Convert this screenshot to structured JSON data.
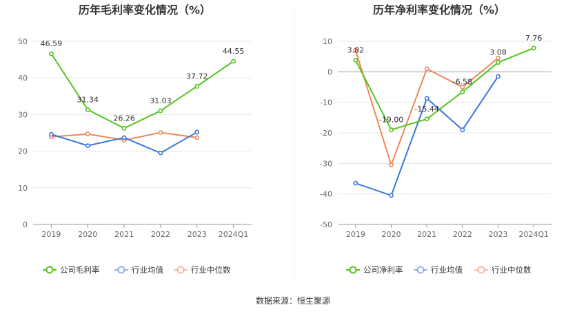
{
  "chart_data": [
    {
      "type": "line",
      "title": "历年毛利率变化情况（%）",
      "categories": [
        "2019",
        "2020",
        "2021",
        "2022",
        "2023",
        "2024Q1"
      ],
      "ylim": [
        0,
        50
      ],
      "yticks": [
        0,
        10,
        20,
        30,
        40,
        50
      ],
      "grid": true,
      "legend": "bottom",
      "series": [
        {
          "name": "公司毛利率",
          "color": "#52c41a",
          "values": [
            46.59,
            31.34,
            26.26,
            31.03,
            37.72,
            44.55
          ],
          "labels": [
            "46.59",
            "31.34",
            "26.26",
            "31.03",
            "37.72",
            "44.55"
          ]
        },
        {
          "name": "行业均值",
          "color": "#3a76d8",
          "values": [
            24.6,
            21.5,
            23.7,
            19.5,
            25.2,
            null
          ]
        },
        {
          "name": "行业中位数",
          "color": "#f0855a",
          "values": [
            23.9,
            24.7,
            23.0,
            25.1,
            23.7,
            null
          ]
        }
      ]
    },
    {
      "type": "line",
      "title": "历年净利率变化情况（%）",
      "categories": [
        "2019",
        "2020",
        "2021",
        "2022",
        "2023",
        "2024Q1"
      ],
      "ylim": [
        -50,
        10
      ],
      "yticks": [
        -50,
        -40,
        -30,
        -20,
        -10,
        0,
        10
      ],
      "grid": true,
      "legend": "bottom",
      "series": [
        {
          "name": "公司净利率",
          "color": "#52c41a",
          "values": [
            3.82,
            -19.0,
            -15.44,
            -6.58,
            3.08,
            7.76
          ],
          "labels": [
            "3.82",
            "-19.00",
            "-15.44",
            "-6.58",
            "3.08",
            "7.76"
          ]
        },
        {
          "name": "行业均值",
          "color": "#3a76d8",
          "values": [
            -36.5,
            -40.5,
            -8.7,
            -19.0,
            -1.5,
            null
          ]
        },
        {
          "name": "行业中位数",
          "color": "#f0855a",
          "values": [
            7.0,
            -30.5,
            1.0,
            -5.0,
            4.5,
            null
          ]
        }
      ]
    }
  ],
  "source": "数据来源：恒生聚源"
}
